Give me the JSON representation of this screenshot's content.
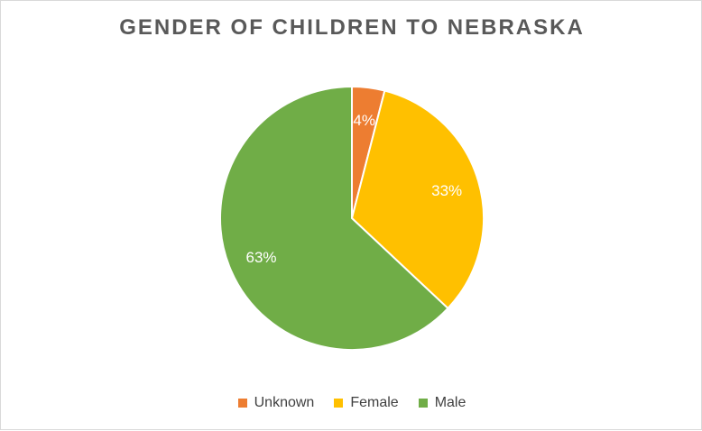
{
  "chart_data": {
    "type": "pie",
    "title": "GENDER OF CHILDREN TO NEBRASKA",
    "slices": [
      {
        "name": "Unknown",
        "value": 4,
        "label": "4%",
        "color": "#ED7D31"
      },
      {
        "name": "Female",
        "value": 33,
        "label": "33%",
        "color": "#FFC000"
      },
      {
        "name": "Male",
        "value": 63,
        "label": "63%",
        "color": "#70AD47"
      }
    ],
    "legend_position": "bottom",
    "label_color": "#ffffff"
  }
}
